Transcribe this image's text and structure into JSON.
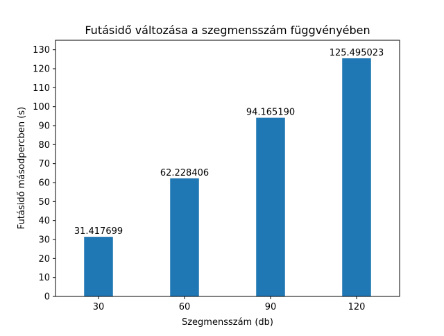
{
  "chart_data": {
    "type": "bar",
    "title": "Futásidő változása a szegmensszám függvényében",
    "xlabel": "Szegmensszám (db)",
    "ylabel": "Futásidő másodpercben (s)",
    "categories": [
      "30",
      "60",
      "90",
      "120"
    ],
    "values": [
      31.417699,
      62.228406,
      94.16519,
      125.495023
    ],
    "data_labels": [
      "31.417699",
      "62.228406",
      "94.165190",
      "125.495023"
    ],
    "ylim": [
      0,
      135
    ],
    "yticks": [
      0,
      10,
      20,
      30,
      40,
      50,
      60,
      70,
      80,
      90,
      100,
      110,
      120,
      130
    ],
    "grid": false,
    "legend": "none",
    "bar_color": "#1f77b4"
  }
}
